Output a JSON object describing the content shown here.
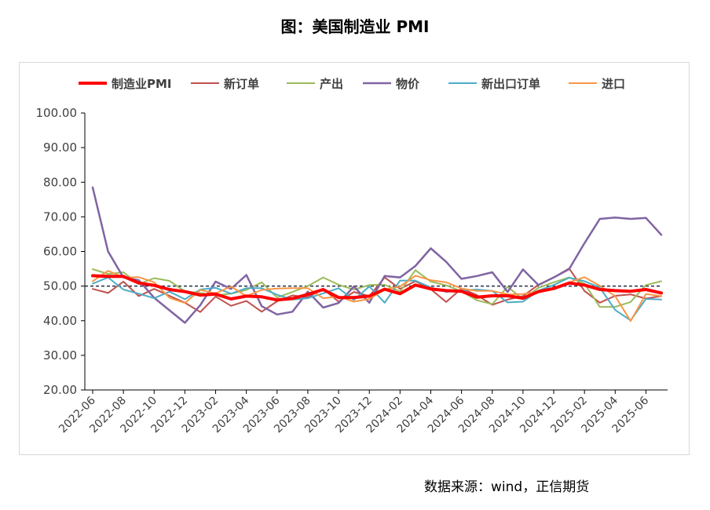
{
  "title": "图：美国制造业 PMI",
  "source": "数据来源：wind，正信期货",
  "chart_data": {
    "type": "line",
    "ylim": [
      20,
      100
    ],
    "yticks": [
      "20.00",
      "30.00",
      "40.00",
      "50.00",
      "60.00",
      "70.00",
      "80.00",
      "90.00",
      "100.00"
    ],
    "reference_line": 50,
    "legend_position": "top",
    "x": [
      "2022-06",
      "2022-07",
      "2022-08",
      "2022-09",
      "2022-10",
      "2022-11",
      "2022-12",
      "2023-01",
      "2023-02",
      "2023-03",
      "2023-04",
      "2023-05",
      "2023-06",
      "2023-07",
      "2023-08",
      "2023-09",
      "2023-10",
      "2023-11",
      "2023-12",
      "2024-01",
      "2024-02",
      "2024-03",
      "2024-04",
      "2024-05",
      "2024-06",
      "2024-07",
      "2024-08",
      "2024-09",
      "2024-10",
      "2024-11",
      "2024-12",
      "2025-01",
      "2025-02",
      "2025-03",
      "2025-04",
      "2025-05",
      "2025-06",
      "2025-07"
    ],
    "xtick_labels": [
      "2022-06",
      "2022-08",
      "2022-10",
      "2022-12",
      "2023-02",
      "2023-04",
      "2023-06",
      "2023-08",
      "2023-10",
      "2023-12",
      "2024-02",
      "2024-04",
      "2024-06",
      "2024-08",
      "2024-10",
      "2024-12",
      "2025-02",
      "2025-04",
      "2025-06"
    ],
    "series": [
      {
        "name": "新订单",
        "color": "#c0504d",
        "width": 2,
        "values": [
          49.2,
          48.0,
          51.3,
          47.1,
          49.2,
          47.2,
          45.2,
          42.5,
          47.0,
          44.3,
          45.7,
          42.6,
          45.6,
          47.3,
          46.8,
          49.2,
          45.5,
          48.3,
          47.1,
          52.5,
          49.2,
          51.4,
          49.1,
          45.4,
          49.3,
          47.4,
          44.6,
          46.1,
          47.1,
          50.4,
          52.5,
          55.1,
          48.6,
          45.2,
          47.2,
          47.6,
          46.4,
          47.1
        ]
      },
      {
        "name": "产出",
        "color": "#9bbb59",
        "width": 2,
        "values": [
          54.9,
          53.5,
          54.0,
          50.6,
          52.3,
          51.5,
          48.5,
          48.0,
          47.3,
          47.8,
          48.9,
          51.1,
          46.7,
          48.3,
          50.0,
          52.5,
          50.4,
          49.0,
          50.3,
          50.4,
          48.4,
          54.6,
          51.3,
          50.2,
          48.5,
          45.9,
          44.8,
          49.8,
          46.2,
          49.5,
          51.1,
          52.5,
          50.7,
          44.0,
          44.0,
          45.4,
          50.3,
          51.4
        ]
      },
      {
        "name": "物价",
        "color": "#8064a2",
        "width": 2.5,
        "values": [
          78.5,
          60.0,
          52.5,
          51.7,
          46.6,
          43.0,
          39.4,
          44.5,
          51.3,
          49.2,
          53.2,
          44.2,
          41.8,
          42.6,
          48.4,
          43.8,
          45.1,
          49.9,
          45.2,
          52.9,
          52.5,
          55.8,
          60.9,
          57.0,
          52.1,
          52.9,
          54.0,
          48.3,
          54.8,
          50.3,
          52.5,
          54.9,
          62.4,
          69.4,
          69.8,
          69.4,
          69.7,
          64.8
        ]
      },
      {
        "name": "新出口订单",
        "color": "#4bacc6",
        "width": 2,
        "values": [
          50.7,
          52.5,
          49.0,
          47.8,
          46.5,
          48.4,
          46.2,
          49.0,
          49.5,
          47.8,
          49.4,
          49.4,
          47.5,
          46.1,
          46.5,
          47.9,
          49.4,
          46.0,
          49.9,
          45.2,
          51.6,
          51.6,
          49.6,
          48.3,
          48.8,
          49.0,
          48.6,
          45.3,
          45.5,
          48.7,
          50.3,
          52.4,
          51.4,
          49.6,
          43.1,
          40.1,
          46.3,
          46.1
        ]
      },
      {
        "name": "进口",
        "color": "#f79646",
        "width": 2,
        "values": [
          51.4,
          54.4,
          52.5,
          52.6,
          51.1,
          46.6,
          45.1,
          48.9,
          47.9,
          49.9,
          47.1,
          48.9,
          49.3,
          49.4,
          49.4,
          46.5,
          47.0,
          45.5,
          46.3,
          49.0,
          49.9,
          53.0,
          51.7,
          51.1,
          49.3,
          48.6,
          48.6,
          47.6,
          47.7,
          48.4,
          49.4,
          51.1,
          52.6,
          50.1,
          47.1,
          39.9,
          47.7,
          47.1
        ]
      },
      {
        "name": "制造业PMI",
        "color": "#ff0000",
        "width": 4,
        "values": [
          53.0,
          52.8,
          52.8,
          50.9,
          50.2,
          49.0,
          48.4,
          47.4,
          47.7,
          46.3,
          47.1,
          46.9,
          46.0,
          46.4,
          47.6,
          49.0,
          46.7,
          46.7,
          47.1,
          49.1,
          47.8,
          50.3,
          49.2,
          48.7,
          48.5,
          46.8,
          47.2,
          47.2,
          46.5,
          48.4,
          49.3,
          50.9,
          50.3,
          49.0,
          48.7,
          48.5,
          49.0,
          48.0
        ]
      }
    ],
    "legend": [
      {
        "name": "制造业PMI",
        "color": "#ff0000",
        "width": 4
      },
      {
        "name": "新订单",
        "color": "#c0504d",
        "width": 2
      },
      {
        "name": "产出",
        "color": "#9bbb59",
        "width": 2
      },
      {
        "name": "物价",
        "color": "#8064a2",
        "width": 2.5
      },
      {
        "name": "新出口订单",
        "color": "#4bacc6",
        "width": 2
      },
      {
        "name": "进口",
        "color": "#f79646",
        "width": 2
      }
    ]
  }
}
